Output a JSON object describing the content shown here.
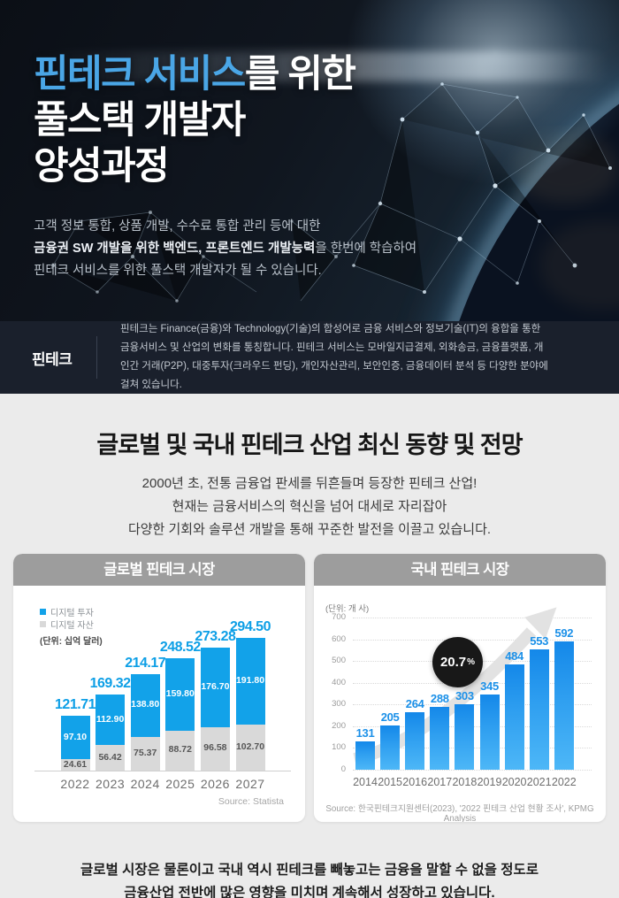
{
  "hero": {
    "title_accent": "핀테크 서비스",
    "title_line1_rest": "를 위한",
    "title_line2": "풀스택 개발자",
    "title_line3": "양성과정",
    "desc_line1": "고객 정보 통합, 상품 개발, 수수료 통합 관리 등에 대한",
    "desc_line2_bold": "금융권 SW 개발을 위한 백엔드, 프론트엔드 개발능력",
    "desc_line2_rest": "을 한번에 학습하여",
    "desc_line3": "핀테크 서비스를 위한 풀스택 개발자가 될 수 있습니다."
  },
  "definition": {
    "term": "핀테크",
    "body": "핀테크는 Finance(금융)와 Technology(기술)의 합성어로 금융 서비스와 정보기술(IT)의 융합을 통한 금융서비스 및 산업의 변화를 통칭합니다. 핀테크 서비스는 모바일지급결제, 외화송금, 금융플랫폼, 개인간 거래(P2P), 대중투자(크라우드 펀딩), 개인자산관리, 보안인증, 금융데이터 분석 등 다양한 분야에 걸쳐 있습니다."
  },
  "trend": {
    "heading": "글로벌 및 국내 핀테크 산업 최신 동향 및 전망",
    "sub_line1": "2000년 초, 전통 금융업 판세를 뒤흔들며 등장한 핀테크 산업!",
    "sub_line2": "현재는 금융서비스의 혁신을 넘어 대세로 자리잡아",
    "sub_line3": "다양한 기회와 솔루션 개발을 통해 꾸준한 발전을 이끌고 있습니다."
  },
  "chart_data": [
    {
      "type": "bar",
      "stacked": true,
      "title": "글로벌 핀테크 시장",
      "unit_label": "(단위: 십억 달러)",
      "categories": [
        "2022",
        "2023",
        "2024",
        "2025",
        "2026",
        "2027"
      ],
      "series": [
        {
          "name": "디지털 투자",
          "color": "#12a2e9",
          "values": [
            97.1,
            112.9,
            138.8,
            159.8,
            176.7,
            191.8
          ]
        },
        {
          "name": "디지털 자산",
          "color": "#d9d9d9",
          "values": [
            24.61,
            56.42,
            75.37,
            88.72,
            96.58,
            102.7
          ]
        }
      ],
      "totals": [
        121.71,
        169.32,
        214.17,
        248.52,
        273.28,
        294.5
      ],
      "legend_position": "top-left",
      "grid": false,
      "source": "Source: Statista"
    },
    {
      "type": "bar",
      "title": "국내 핀테크 시장",
      "unit_label": "(단위: 개 사)",
      "categories": [
        "2014",
        "2015",
        "2016",
        "2017",
        "2018",
        "2019",
        "2020",
        "2021",
        "2022"
      ],
      "values": [
        131,
        205,
        264,
        288,
        303,
        345,
        484,
        553,
        592
      ],
      "ylim": [
        0,
        700
      ],
      "yticks": [
        0,
        100,
        200,
        300,
        400,
        500,
        600,
        700
      ],
      "grid": "dotted-horizontal",
      "badge_value": "20.7",
      "badge_suffix": "%",
      "source": "Source: 한국핀테크지원센터(2023), '2022 핀테크 산업 현황 조사', KPMG Analysis"
    }
  ],
  "footer": {
    "line1": "글로벌 시장은 물론이고 국내 역시 핀테크를 빼놓고는 금융을 말할 수 없을 정도로",
    "line2": "금융산업 전반에 많은 영향을 미치며 계속해서 성장하고 있습니다."
  }
}
